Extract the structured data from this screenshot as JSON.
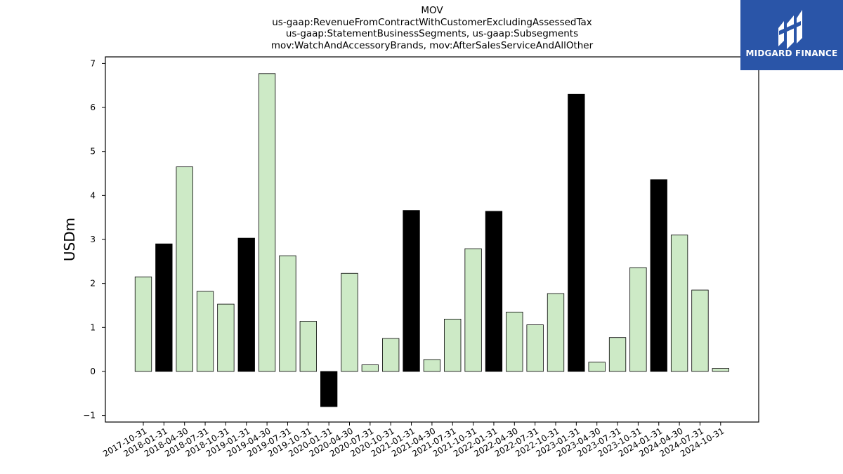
{
  "chart_data": {
    "type": "bar",
    "title_lines": [
      "MOV",
      "us-gaap:RevenueFromContractWithCustomerExcludingAssessedTax",
      "us-gaap:StatementBusinessSegments, us-gaap:Subsegments",
      "mov:WatchAndAccessoryBrands, mov:AfterSalesServiceAndAllOther"
    ],
    "ylabel": "USDm",
    "xlabel": "",
    "ylim": [
      -1.15,
      7.15
    ],
    "yticks": [
      -1,
      0,
      1,
      2,
      3,
      4,
      5,
      6,
      7
    ],
    "grid": false,
    "categories": [
      "2017-10-31",
      "2018-01-31",
      "2018-04-30",
      "2018-07-31",
      "2018-10-31",
      "2019-01-31",
      "2019-04-30",
      "2019-07-31",
      "2019-10-31",
      "2020-01-31",
      "2020-04-30",
      "2020-07-31",
      "2020-10-31",
      "2021-01-31",
      "2021-04-30",
      "2021-07-31",
      "2021-10-31",
      "2022-01-31",
      "2022-04-30",
      "2022-07-31",
      "2022-10-31",
      "2023-01-31",
      "2023-04-30",
      "2023-07-31",
      "2023-10-31",
      "2024-01-31",
      "2024-04-30",
      "2024-07-31",
      "2024-10-31"
    ],
    "values": [
      2.15,
      2.9,
      4.65,
      1.82,
      1.53,
      3.03,
      6.77,
      2.63,
      1.14,
      -0.8,
      2.23,
      0.15,
      0.75,
      3.66,
      0.27,
      1.19,
      2.79,
      3.64,
      1.35,
      1.06,
      1.77,
      6.3,
      0.21,
      0.77,
      2.36,
      4.36,
      3.1,
      1.85,
      0.07
    ],
    "bar_colors": [
      "#cdeac6",
      "#000000",
      "#cdeac6",
      "#cdeac6",
      "#cdeac6",
      "#000000",
      "#cdeac6",
      "#cdeac6",
      "#cdeac6",
      "#000000",
      "#cdeac6",
      "#cdeac6",
      "#cdeac6",
      "#000000",
      "#cdeac6",
      "#cdeac6",
      "#cdeac6",
      "#000000",
      "#cdeac6",
      "#cdeac6",
      "#cdeac6",
      "#000000",
      "#cdeac6",
      "#cdeac6",
      "#cdeac6",
      "#000000",
      "#cdeac6",
      "#cdeac6",
      "#cdeac6"
    ]
  },
  "logo": {
    "text": "MIDGARD FINANCE",
    "background": "#2a55a8",
    "icon": "midgard-logo-icon"
  }
}
